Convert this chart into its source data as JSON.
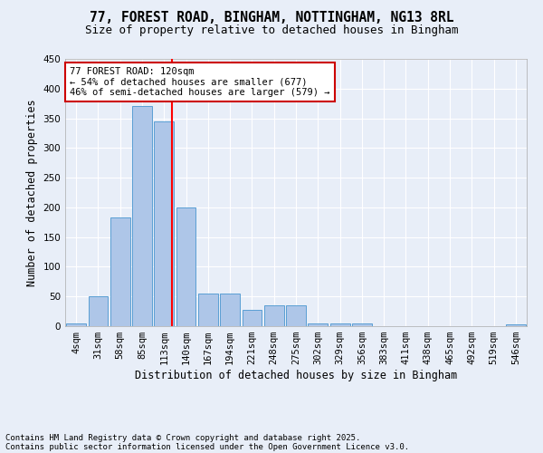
{
  "title1": "77, FOREST ROAD, BINGHAM, NOTTINGHAM, NG13 8RL",
  "title2": "Size of property relative to detached houses in Bingham",
  "xlabel": "Distribution of detached houses by size in Bingham",
  "ylabel": "Number of detached properties",
  "bar_labels": [
    "4sqm",
    "31sqm",
    "58sqm",
    "85sqm",
    "113sqm",
    "140sqm",
    "167sqm",
    "194sqm",
    "221sqm",
    "248sqm",
    "275sqm",
    "302sqm",
    "329sqm",
    "356sqm",
    "383sqm",
    "411sqm",
    "438sqm",
    "465sqm",
    "492sqm",
    "519sqm",
    "546sqm"
  ],
  "bar_values": [
    4,
    50,
    183,
    370,
    345,
    200,
    55,
    55,
    27,
    35,
    35,
    5,
    5,
    5,
    0,
    0,
    0,
    0,
    0,
    0,
    3
  ],
  "bar_color": "#aec6e8",
  "bar_edge_color": "#5a9fd4",
  "background_color": "#e8eef8",
  "grid_color": "#ffffff",
  "red_line_x": 4.35,
  "annotation_text": "77 FOREST ROAD: 120sqm\n← 54% of detached houses are smaller (677)\n46% of semi-detached houses are larger (579) →",
  "annotation_box_color": "#ffffff",
  "annotation_box_edge": "#cc0000",
  "ylim": [
    0,
    450
  ],
  "yticks": [
    0,
    50,
    100,
    150,
    200,
    250,
    300,
    350,
    400,
    450
  ],
  "footnote1": "Contains HM Land Registry data © Crown copyright and database right 2025.",
  "footnote2": "Contains public sector information licensed under the Open Government Licence v3.0.",
  "title1_fontsize": 10.5,
  "title2_fontsize": 9,
  "axis_label_fontsize": 8.5,
  "tick_fontsize": 7.5,
  "annotation_fontsize": 7.5,
  "footnote_fontsize": 6.5
}
